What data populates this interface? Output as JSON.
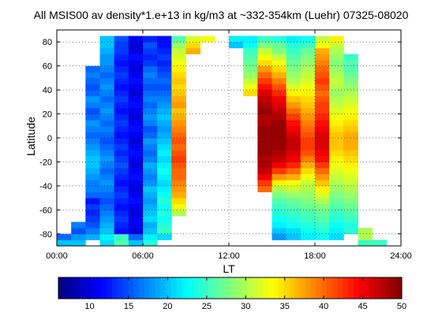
{
  "chart_data": {
    "type": "heatmap",
    "title": "All MSIS00 av density*1.e+13 in kg/m3 at ~332-354km (Luehr) 07325-08020",
    "xlabel": "LT",
    "ylabel": "Latitude",
    "xlim": [
      0,
      24
    ],
    "ylim": [
      -90,
      90
    ],
    "x_ticks": [
      0,
      6,
      12,
      18,
      24
    ],
    "x_tick_labels": [
      "00:00",
      "06:00",
      "12:00",
      "18:00",
      "24:00"
    ],
    "y_ticks": [
      -80,
      -60,
      -40,
      -20,
      0,
      20,
      40,
      60,
      80
    ],
    "y_tick_labels": [
      "-80",
      "-60",
      "-40",
      "-20",
      "0",
      "20",
      "40",
      "60",
      "80"
    ],
    "grid": true,
    "colorbar": {
      "vmin": 6,
      "vmax": 50,
      "ticks": [
        10,
        15,
        20,
        25,
        30,
        35,
        40,
        45,
        50
      ],
      "tick_labels": [
        "10",
        "15",
        "20",
        "25",
        "30",
        "35",
        "40",
        "45",
        "50"
      ],
      "colormap": "jet",
      "placement": "bottom"
    },
    "lat_bin_size": 5,
    "lat_bin_starts": [
      -90,
      -85,
      -80,
      -75,
      -70,
      -65,
      -60,
      -55,
      -50,
      -45,
      -40,
      -35,
      -30,
      -25,
      -20,
      -15,
      -10,
      -5,
      0,
      5,
      10,
      15,
      20,
      25,
      30,
      35,
      40,
      45,
      50,
      55,
      60,
      65,
      70,
      75,
      80,
      85
    ],
    "columns": [
      {
        "lt": [
          0.0,
          1.0
        ],
        "values": [
          20,
          16
        ]
      },
      {
        "lt": [
          1.0,
          2.0
        ],
        "values": [
          20,
          18,
          15,
          17
        ]
      },
      {
        "lt": [
          2.0,
          3.0
        ],
        "values": [
          null,
          19,
          17,
          15,
          14,
          13,
          14,
          12
        ]
      },
      {
        "lt": [
          2.0,
          3.0
        ],
        "lat_start": -50,
        "values": [
          16,
          17,
          17,
          18,
          19,
          20,
          20,
          19,
          18,
          17,
          16,
          17,
          18,
          16,
          15,
          17,
          18,
          16,
          15,
          16,
          17,
          16
        ]
      },
      {
        "lt": [
          3.0,
          4.0
        ],
        "values": [
          21,
          22,
          20,
          19,
          18,
          17,
          16,
          15,
          16,
          17,
          18,
          17,
          16,
          17,
          18,
          17,
          16,
          15,
          16,
          17,
          16,
          17,
          18,
          17,
          16,
          17,
          18,
          17,
          16,
          17,
          18,
          18,
          19,
          20,
          20
        ]
      },
      {
        "lt": [
          4.0,
          5.0
        ],
        "values": [
          26,
          25,
          12,
          13,
          14,
          13,
          12,
          13,
          14,
          13,
          12,
          13,
          14,
          15,
          14,
          13,
          14,
          13,
          12,
          13,
          14,
          13,
          12,
          13,
          14,
          13,
          12,
          13,
          14,
          13,
          12,
          13,
          14,
          14,
          15
        ]
      },
      {
        "lt": [
          5.0,
          6.0
        ],
        "values": [
          20,
          16,
          10,
          11,
          11,
          10,
          11,
          12,
          11,
          10,
          11,
          12,
          11,
          10,
          11,
          12,
          11,
          10,
          11,
          12,
          11,
          10,
          11,
          12,
          11,
          10,
          11,
          12,
          11,
          10,
          11,
          12,
          10,
          10,
          11
        ]
      },
      {
        "lt": [
          6.0,
          7.0
        ],
        "values": [
          24,
          22,
          20,
          19,
          21,
          20,
          19,
          18,
          19,
          20,
          18,
          17,
          18,
          19,
          17,
          16,
          17,
          18,
          16,
          15,
          17,
          18,
          17,
          16,
          17,
          16,
          15,
          16,
          17,
          16,
          14,
          13,
          14,
          15,
          13
        ]
      },
      {
        "lt": [
          7.0,
          8.0
        ],
        "values": [
          null,
          21,
          25,
          24,
          23,
          24,
          23,
          24,
          23,
          22,
          21,
          22,
          23,
          22,
          21,
          22,
          21,
          20,
          19,
          18,
          19,
          20,
          19,
          18,
          17,
          16,
          15,
          16,
          15,
          14,
          13,
          14,
          13,
          12,
          12
        ]
      },
      {
        "lt": [
          8.0,
          9.0
        ],
        "values": [
          null,
          null,
          null,
          null,
          null,
          30,
          33,
          35,
          37,
          38,
          39,
          40,
          40,
          41,
          42,
          41,
          40,
          41,
          40,
          39,
          38,
          37,
          36,
          38,
          37,
          36,
          35,
          36,
          35,
          34,
          33,
          32,
          31,
          29,
          26
        ]
      },
      {
        "lt": [
          9.0,
          10.0
        ],
        "values": [
          null,
          null,
          null,
          null,
          null,
          null,
          null,
          null,
          null,
          null,
          null,
          null,
          null,
          null,
          null,
          null,
          null,
          null,
          null,
          null,
          null,
          null,
          null,
          null,
          null,
          null,
          null,
          null,
          null,
          null,
          null,
          null,
          37,
          35,
          32
        ]
      },
      {
        "lt": [
          10.0,
          11.0
        ],
        "values": [
          null,
          null,
          null,
          null,
          null,
          null,
          null,
          null,
          null,
          null,
          null,
          null,
          null,
          null,
          null,
          null,
          null,
          null,
          null,
          null,
          null,
          null,
          null,
          null,
          null,
          null,
          null,
          null,
          null,
          null,
          null,
          null,
          null,
          null,
          33
        ]
      },
      {
        "lt": [
          12.0,
          13.0
        ],
        "values": [
          null,
          null,
          null,
          null,
          null,
          null,
          null,
          null,
          null,
          null,
          null,
          null,
          null,
          null,
          null,
          null,
          null,
          null,
          null,
          null,
          null,
          null,
          null,
          null,
          null,
          null,
          null,
          null,
          null,
          null,
          null,
          null,
          null,
          20,
          22
        ]
      },
      {
        "lt": [
          13.0,
          14.0
        ],
        "values": [
          null,
          null,
          null,
          null,
          null,
          null,
          null,
          null,
          null,
          null,
          null,
          null,
          null,
          null,
          null,
          null,
          null,
          null,
          null,
          null,
          null,
          null,
          null,
          null,
          null,
          35,
          33,
          31,
          29,
          28,
          27,
          26,
          25,
          23,
          22
        ]
      },
      {
        "lt": [
          14.0,
          15.0
        ],
        "values": [
          null,
          null,
          null,
          null,
          null,
          null,
          null,
          null,
          null,
          40,
          42,
          45,
          47,
          48,
          48,
          49,
          49,
          49,
          49,
          49,
          48,
          48,
          49,
          48,
          47,
          46,
          44,
          42,
          40,
          38,
          35,
          33,
          31,
          28,
          25
        ]
      },
      {
        "lt": [
          15.0,
          16.0
        ],
        "values": [
          null,
          18,
          20,
          22,
          23,
          24,
          25,
          26,
          28,
          30,
          34,
          38,
          42,
          45,
          47,
          48,
          49,
          49,
          49,
          49,
          49,
          48,
          47,
          46,
          45,
          43,
          41,
          39,
          37,
          35,
          33,
          31,
          28,
          27,
          24
        ]
      },
      {
        "lt": [
          16.0,
          17.0
        ],
        "values": [
          null,
          20,
          21,
          23,
          24,
          25,
          26,
          27,
          29,
          31,
          33,
          37,
          40,
          43,
          45,
          46,
          47,
          47,
          46,
          45,
          44,
          42,
          40,
          38,
          36,
          34,
          32,
          30,
          29,
          28,
          27,
          26,
          25,
          24,
          22
        ]
      },
      {
        "lt": [
          17.0,
          18.0
        ],
        "values": [
          null,
          22,
          23,
          24,
          25,
          26,
          27,
          28,
          29,
          30,
          31,
          33,
          35,
          37,
          39,
          41,
          42,
          42,
          41,
          40,
          39,
          38,
          37,
          36,
          35,
          34,
          33,
          32,
          31,
          30,
          29,
          28,
          27,
          25,
          23
        ]
      },
      {
        "lt": [
          18.0,
          19.0
        ],
        "values": [
          null,
          23,
          24,
          25,
          26,
          27,
          28,
          30,
          32,
          34,
          36,
          38,
          40,
          42,
          44,
          45,
          46,
          46,
          46,
          45,
          44,
          43,
          42,
          42,
          41,
          40,
          41,
          42,
          41,
          40,
          39,
          38,
          37,
          33,
          31
        ]
      },
      {
        "lt": [
          19.0,
          20.0
        ],
        "values": [
          null,
          21,
          22,
          23,
          24,
          25,
          26,
          27,
          28,
          29,
          30,
          31,
          32,
          33,
          34,
          35,
          36,
          36,
          36,
          35,
          34,
          33,
          32,
          31,
          30,
          29,
          30,
          31,
          30,
          29,
          28,
          29,
          30,
          31,
          34
        ]
      },
      {
        "lt": [
          20.0,
          21.0
        ],
        "values": [
          null,
          null,
          24,
          24,
          25,
          26,
          27,
          28,
          29,
          30,
          31,
          32,
          33,
          34,
          35,
          36,
          37,
          37,
          37,
          36,
          35,
          34,
          33,
          32,
          31,
          30,
          29,
          28,
          27,
          26,
          26,
          25
        ]
      },
      {
        "lt": [
          21.0,
          22.0
        ],
        "values": [
          25,
          30,
          30
        ]
      },
      {
        "lt": [
          22.0,
          23.0
        ],
        "values": [
          25
        ]
      }
    ]
  }
}
